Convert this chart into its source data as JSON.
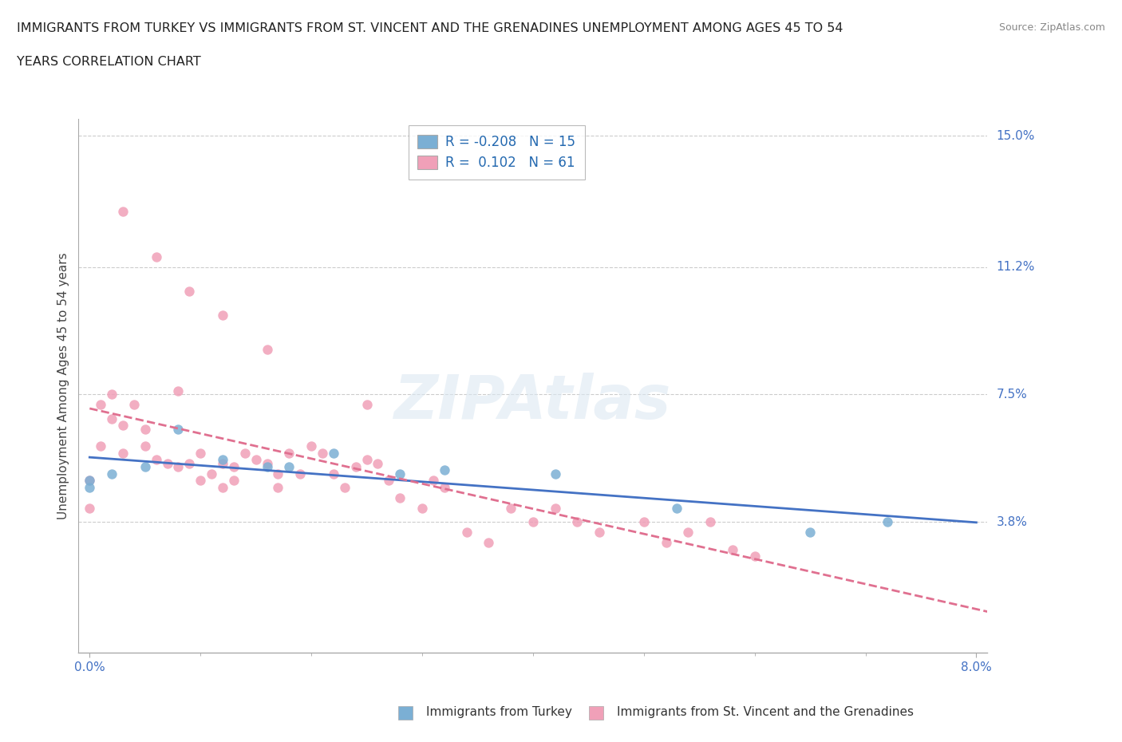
{
  "title_line1": "IMMIGRANTS FROM TURKEY VS IMMIGRANTS FROM ST. VINCENT AND THE GRENADINES UNEMPLOYMENT AMONG AGES 45 TO 54",
  "title_line2": "YEARS CORRELATION CHART",
  "source": "Source: ZipAtlas.com",
  "ylabel": "Unemployment Among Ages 45 to 54 years",
  "xlabel_turkey": "Immigrants from Turkey",
  "xlabel_stvincent": "Immigrants from St. Vincent and the Grenadines",
  "xlim_min": 0.0,
  "xlim_max": 0.08,
  "ylim_min": 0.0,
  "ylim_max": 0.155,
  "ytick_vals": [
    0.038,
    0.075,
    0.112,
    0.15
  ],
  "ytick_labels": [
    "3.8%",
    "7.5%",
    "11.2%",
    "15.0%"
  ],
  "xtick_vals": [
    0.0,
    0.08
  ],
  "xtick_labels": [
    "0.0%",
    "8.0%"
  ],
  "grid_color": "#cccccc",
  "background_color": "#ffffff",
  "turkey_color": "#7bafd4",
  "stvincent_color": "#f0a0b8",
  "turkey_line_color": "#4472c4",
  "stvincent_line_color": "#e07090",
  "stvincent_dash_color": "#d08090",
  "turkey_R": -0.208,
  "turkey_N": 15,
  "stvincent_R": 0.102,
  "stvincent_N": 61,
  "turkey_x": [
    0.0,
    0.0,
    0.002,
    0.005,
    0.008,
    0.012,
    0.016,
    0.018,
    0.022,
    0.028,
    0.032,
    0.042,
    0.053,
    0.065,
    0.072
  ],
  "turkey_y": [
    0.05,
    0.048,
    0.052,
    0.054,
    0.065,
    0.056,
    0.054,
    0.054,
    0.058,
    0.052,
    0.053,
    0.052,
    0.042,
    0.035,
    0.038
  ],
  "sv_x": [
    0.0,
    0.0,
    0.001,
    0.001,
    0.002,
    0.002,
    0.003,
    0.003,
    0.004,
    0.005,
    0.005,
    0.006,
    0.007,
    0.008,
    0.008,
    0.009,
    0.01,
    0.01,
    0.011,
    0.012,
    0.012,
    0.013,
    0.013,
    0.014,
    0.015,
    0.016,
    0.017,
    0.017,
    0.018,
    0.019,
    0.02,
    0.021,
    0.022,
    0.023,
    0.024,
    0.025,
    0.026,
    0.027,
    0.028,
    0.03,
    0.031,
    0.032,
    0.034,
    0.036,
    0.038,
    0.04,
    0.042,
    0.044,
    0.046,
    0.05,
    0.052,
    0.054,
    0.056,
    0.058,
    0.06,
    0.003,
    0.006,
    0.009,
    0.012,
    0.016,
    0.025
  ],
  "sv_y": [
    0.05,
    0.042,
    0.072,
    0.06,
    0.075,
    0.068,
    0.066,
    0.058,
    0.072,
    0.065,
    0.06,
    0.056,
    0.055,
    0.076,
    0.054,
    0.055,
    0.058,
    0.05,
    0.052,
    0.055,
    0.048,
    0.054,
    0.05,
    0.058,
    0.056,
    0.055,
    0.052,
    0.048,
    0.058,
    0.052,
    0.06,
    0.058,
    0.052,
    0.048,
    0.054,
    0.056,
    0.055,
    0.05,
    0.045,
    0.042,
    0.05,
    0.048,
    0.035,
    0.032,
    0.042,
    0.038,
    0.042,
    0.038,
    0.035,
    0.038,
    0.032,
    0.035,
    0.038,
    0.03,
    0.028,
    0.128,
    0.115,
    0.105,
    0.098,
    0.088,
    0.072
  ],
  "watermark_text": "ZIPAtlas",
  "legend_turkey_label": "R = -0.208  N = 15",
  "legend_sv_label": "R =  0.102  N = 61"
}
